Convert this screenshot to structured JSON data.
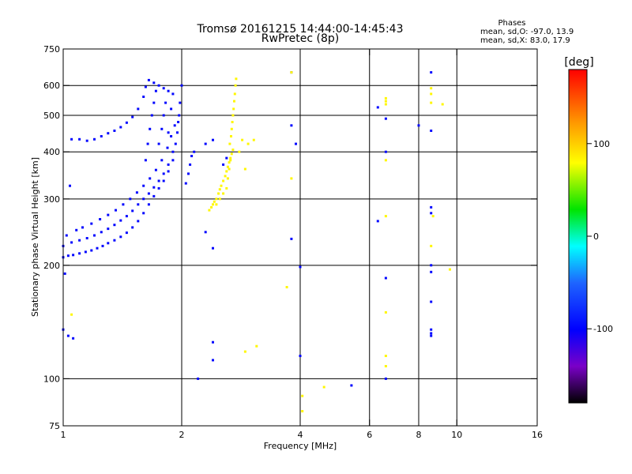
{
  "chart_data": {
    "type": "scatter",
    "title": "Tromsø 20161215 14:44:00-14:45:43",
    "subtitle": "RwPretec (8p)",
    "xlabel": "Frequency [MHz]",
    "ylabel": "Stationary phase Virtual Height [km]",
    "x_scale": "log",
    "y_scale": "log",
    "xlim": [
      1,
      16
    ],
    "ylim": [
      75,
      750
    ],
    "x_ticks": [
      1,
      2,
      4,
      6,
      8,
      10,
      16
    ],
    "x_tick_labels": [
      "1",
      "2",
      "4",
      "6",
      "8",
      "10",
      "16"
    ],
    "y_ticks": [
      75,
      100,
      200,
      300,
      400,
      500,
      600,
      750
    ],
    "y_tick_labels": [
      "75",
      "100",
      "200",
      "300",
      "400",
      "500",
      "600",
      "750"
    ],
    "grid": true,
    "grid_x": [
      2,
      4,
      6,
      8,
      10
    ],
    "grid_y": [
      100,
      200,
      300,
      400,
      500,
      600
    ],
    "phase_info": {
      "heading": "Phases",
      "line_o": "mean, sd,O: -97.0, 13.9",
      "line_x": "mean, sd,X: 83.0, 17.9"
    },
    "colorbar": {
      "label": "[deg]",
      "range": [
        -180,
        180
      ],
      "ticks": [
        -100,
        0,
        100
      ],
      "tick_labels": [
        "-100",
        "0",
        "100"
      ]
    },
    "series": [
      {
        "mode": "O",
        "phase_deg": -97,
        "points": [
          [
            1.0,
            210
          ],
          [
            1.03,
            212
          ],
          [
            1.06,
            213
          ],
          [
            1.1,
            215
          ],
          [
            1.14,
            217
          ],
          [
            1.18,
            219
          ],
          [
            1.22,
            222
          ],
          [
            1.26,
            225
          ],
          [
            1.3,
            229
          ],
          [
            1.35,
            233
          ],
          [
            1.4,
            238
          ],
          [
            1.45,
            244
          ],
          [
            1.5,
            252
          ],
          [
            1.55,
            262
          ],
          [
            1.6,
            275
          ],
          [
            1.65,
            290
          ],
          [
            1.7,
            305
          ],
          [
            1.75,
            320
          ],
          [
            1.8,
            335
          ],
          [
            1.85,
            355
          ],
          [
            1.9,
            380
          ],
          [
            1.93,
            420
          ],
          [
            1.96,
            480
          ],
          [
            1.98,
            540
          ],
          [
            2.0,
            600
          ],
          [
            1.0,
            225
          ],
          [
            1.05,
            230
          ],
          [
            1.1,
            233
          ],
          [
            1.15,
            236
          ],
          [
            1.2,
            240
          ],
          [
            1.25,
            245
          ],
          [
            1.3,
            250
          ],
          [
            1.35,
            256
          ],
          [
            1.4,
            263
          ],
          [
            1.45,
            270
          ],
          [
            1.5,
            279
          ],
          [
            1.55,
            290
          ],
          [
            1.6,
            300
          ],
          [
            1.65,
            310
          ],
          [
            1.7,
            322
          ],
          [
            1.75,
            335
          ],
          [
            1.8,
            350
          ],
          [
            1.85,
            370
          ],
          [
            1.9,
            400
          ],
          [
            1.95,
            450
          ],
          [
            1.02,
            240
          ],
          [
            1.08,
            248
          ],
          [
            1.12,
            252
          ],
          [
            1.18,
            258
          ],
          [
            1.24,
            265
          ],
          [
            1.3,
            272
          ],
          [
            1.36,
            280
          ],
          [
            1.42,
            290
          ],
          [
            1.48,
            300
          ],
          [
            1.54,
            312
          ],
          [
            1.6,
            325
          ],
          [
            1.66,
            340
          ],
          [
            1.72,
            358
          ],
          [
            1.78,
            380
          ],
          [
            1.84,
            410
          ],
          [
            1.88,
            440
          ],
          [
            1.92,
            470
          ],
          [
            1.97,
            500
          ],
          [
            1.05,
            432
          ],
          [
            1.1,
            432
          ],
          [
            1.15,
            428
          ],
          [
            1.2,
            432
          ],
          [
            1.25,
            440
          ],
          [
            1.3,
            448
          ],
          [
            1.35,
            455
          ],
          [
            1.4,
            465
          ],
          [
            1.45,
            478
          ],
          [
            1.5,
            495
          ],
          [
            1.55,
            520
          ],
          [
            1.6,
            560
          ],
          [
            1.62,
            595
          ],
          [
            1.65,
            620
          ],
          [
            1.7,
            610
          ],
          [
            1.75,
            600
          ],
          [
            1.8,
            590
          ],
          [
            1.85,
            580
          ],
          [
            1.9,
            570
          ],
          [
            1.62,
            380
          ],
          [
            1.64,
            420
          ],
          [
            1.66,
            460
          ],
          [
            1.68,
            500
          ],
          [
            1.7,
            540
          ],
          [
            1.72,
            580
          ],
          [
            1.75,
            420
          ],
          [
            1.78,
            460
          ],
          [
            1.8,
            500
          ],
          [
            1.82,
            540
          ],
          [
            1.85,
            450
          ],
          [
            1.88,
            520
          ],
          [
            1.0,
            135
          ],
          [
            1.03,
            130
          ],
          [
            1.06,
            128
          ],
          [
            1.04,
            325
          ],
          [
            1.01,
            190
          ],
          [
            2.05,
            330
          ],
          [
            2.08,
            350
          ],
          [
            2.1,
            370
          ],
          [
            2.12,
            390
          ],
          [
            2.15,
            400
          ],
          [
            2.3,
            420
          ],
          [
            2.4,
            430
          ],
          [
            2.3,
            245
          ],
          [
            2.4,
            222
          ],
          [
            2.4,
            125
          ],
          [
            2.4,
            112
          ],
          [
            2.2,
            100
          ],
          [
            2.55,
            370
          ],
          [
            2.6,
            385
          ],
          [
            3.8,
            650
          ],
          [
            3.8,
            470
          ],
          [
            3.8,
            235
          ],
          [
            4.0,
            115
          ],
          [
            4.0,
            198
          ],
          [
            3.9,
            420
          ],
          [
            6.3,
            525
          ],
          [
            6.3,
            262
          ],
          [
            6.6,
            490
          ],
          [
            6.6,
            400
          ],
          [
            6.6,
            185
          ],
          [
            6.6,
            100
          ],
          [
            8.0,
            470
          ],
          [
            8.6,
            650
          ],
          [
            8.6,
            455
          ],
          [
            8.6,
            285
          ],
          [
            8.6,
            275
          ],
          [
            8.6,
            200
          ],
          [
            8.6,
            192
          ],
          [
            8.6,
            160
          ],
          [
            8.6,
            135
          ],
          [
            8.6,
            132
          ],
          [
            8.6,
            130
          ],
          [
            5.4,
            96
          ]
        ]
      },
      {
        "mode": "X",
        "phase_deg": 83,
        "points": [
          [
            2.35,
            280
          ],
          [
            2.38,
            285
          ],
          [
            2.4,
            290
          ],
          [
            2.42,
            295
          ],
          [
            2.45,
            300
          ],
          [
            2.48,
            310
          ],
          [
            2.5,
            318
          ],
          [
            2.52,
            325
          ],
          [
            2.55,
            335
          ],
          [
            2.58,
            345
          ],
          [
            2.6,
            355
          ],
          [
            2.62,
            365
          ],
          [
            2.64,
            375
          ],
          [
            2.66,
            385
          ],
          [
            2.68,
            395
          ],
          [
            2.7,
            405
          ],
          [
            2.65,
            420
          ],
          [
            2.67,
            440
          ],
          [
            2.68,
            460
          ],
          [
            2.69,
            480
          ],
          [
            2.7,
            500
          ],
          [
            2.71,
            520
          ],
          [
            2.72,
            545
          ],
          [
            2.73,
            570
          ],
          [
            2.74,
            600
          ],
          [
            2.75,
            625
          ],
          [
            2.45,
            290
          ],
          [
            2.5,
            300
          ],
          [
            2.55,
            310
          ],
          [
            2.6,
            320
          ],
          [
            2.62,
            340
          ],
          [
            2.64,
            360
          ],
          [
            2.66,
            380
          ],
          [
            2.8,
            400
          ],
          [
            2.85,
            430
          ],
          [
            2.9,
            360
          ],
          [
            2.95,
            420
          ],
          [
            3.05,
            430
          ],
          [
            1.05,
            148
          ],
          [
            2.9,
            118
          ],
          [
            3.1,
            122
          ],
          [
            3.7,
            175
          ],
          [
            3.8,
            650
          ],
          [
            3.8,
            340
          ],
          [
            4.05,
            90
          ],
          [
            4.05,
            82
          ],
          [
            4.6,
            95
          ],
          [
            6.6,
            555
          ],
          [
            6.6,
            545
          ],
          [
            6.6,
            535
          ],
          [
            6.6,
            380
          ],
          [
            6.6,
            270
          ],
          [
            6.6,
            150
          ],
          [
            6.6,
            115
          ],
          [
            6.6,
            108
          ],
          [
            8.6,
            590
          ],
          [
            8.6,
            570
          ],
          [
            8.6,
            540
          ],
          [
            8.6,
            225
          ],
          [
            9.2,
            535
          ],
          [
            9.6,
            195
          ],
          [
            8.7,
            270
          ]
        ]
      }
    ]
  }
}
